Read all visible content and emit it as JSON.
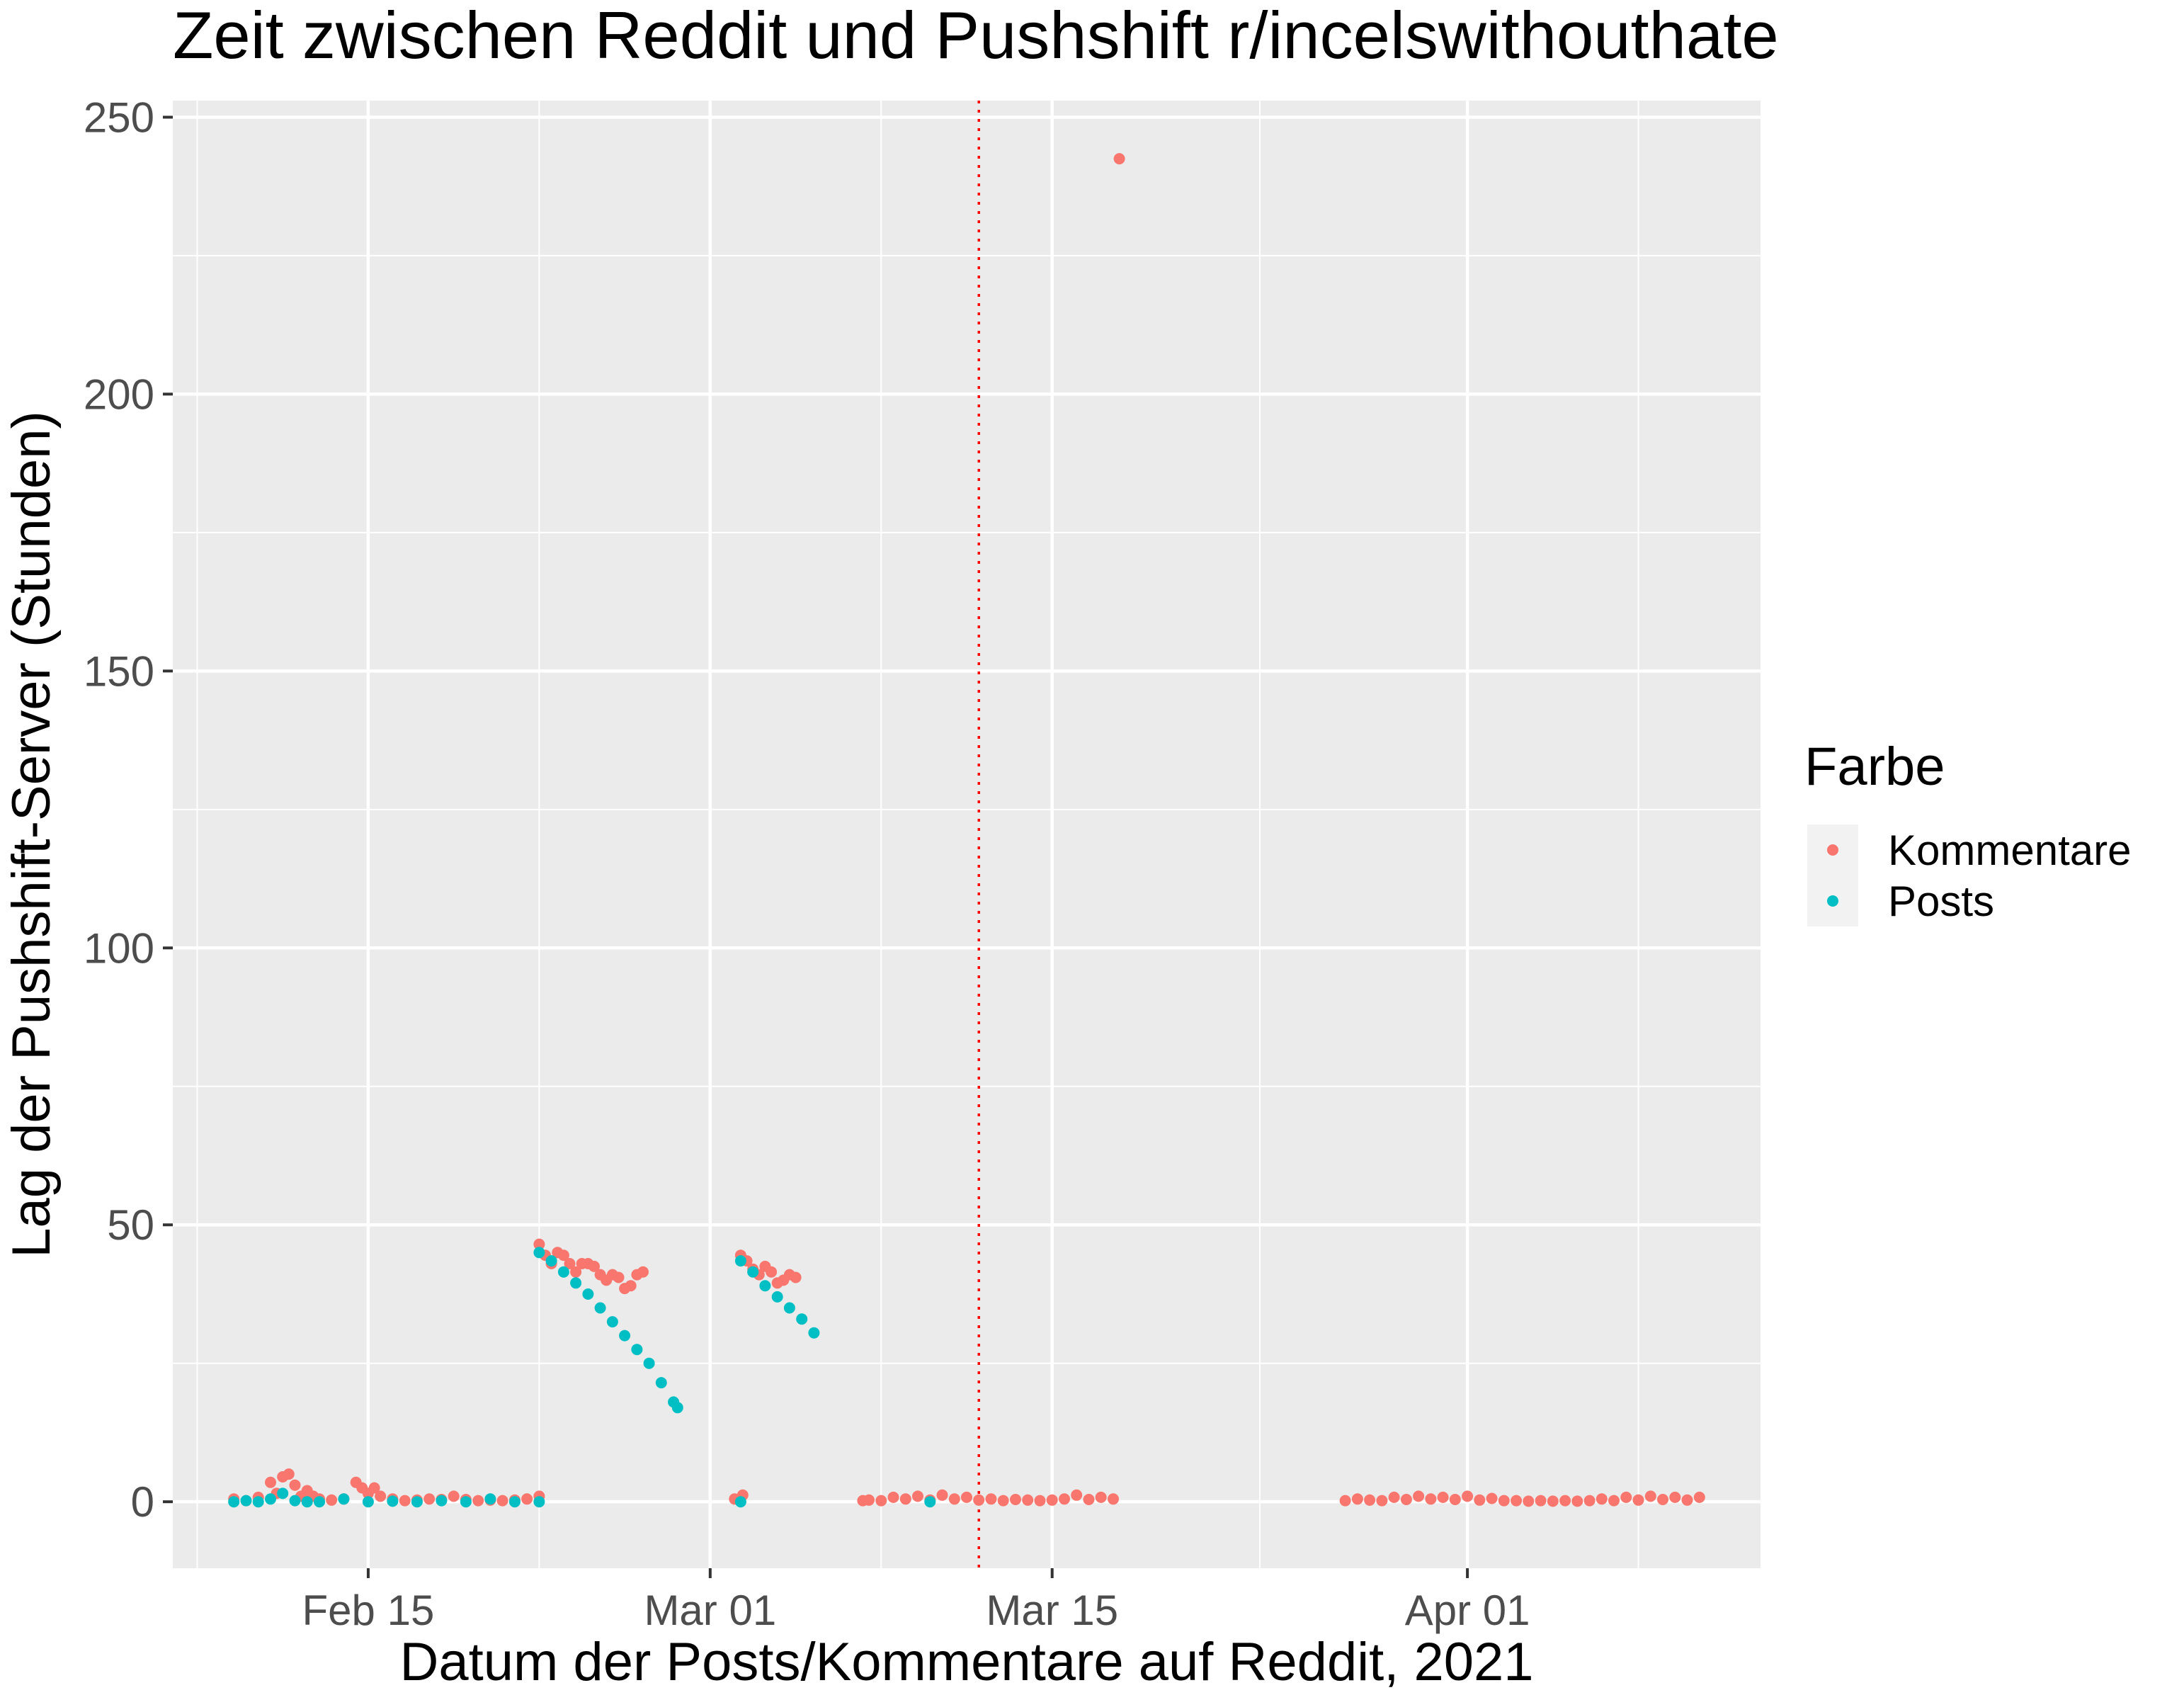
{
  "chart_data": {
    "type": "scatter",
    "title": "Zeit zwischen Reddit und Pushshift r/incelswithouthate",
    "xlabel": "Datum der Posts/Kommentare auf Reddit, 2021",
    "ylabel": "Lag der Pushshift-Server (Stunden)",
    "x_tick_labels": [
      "Feb 15",
      "Mar 01",
      "Mar 15",
      "Apr 01"
    ],
    "x_tick_dates": [
      "2021-02-15",
      "2021-03-01",
      "2021-03-15",
      "2021-04-01"
    ],
    "xlim": [
      "2021-02-07",
      "2021-04-13"
    ],
    "y_ticks": [
      0,
      50,
      100,
      150,
      200,
      250
    ],
    "ylim": [
      -12,
      253
    ],
    "grid": true,
    "vline": {
      "x": "2021-03-12",
      "color": "#ff0000",
      "style": "dotted"
    },
    "legend": {
      "title": "Farbe",
      "position": "right",
      "entries": [
        {
          "label": "Kommentare",
          "color": "#F8766D"
        },
        {
          "label": "Posts",
          "color": "#00BFC4"
        }
      ]
    },
    "series": [
      {
        "name": "Kommentare",
        "color": "#F8766D",
        "points": [
          [
            "2021-02-09T12:00",
            0.5
          ],
          [
            "2021-02-10T00:00",
            0.2
          ],
          [
            "2021-02-10T12:00",
            0.8
          ],
          [
            "2021-02-11T00:00",
            3.5
          ],
          [
            "2021-02-11T06:00",
            1.5
          ],
          [
            "2021-02-11T12:00",
            4.5
          ],
          [
            "2021-02-11T18:00",
            5
          ],
          [
            "2021-02-12T00:00",
            3
          ],
          [
            "2021-02-12T06:00",
            1
          ],
          [
            "2021-02-12T12:00",
            2
          ],
          [
            "2021-02-12T18:00",
            1
          ],
          [
            "2021-02-13T00:00",
            0.5
          ],
          [
            "2021-02-13T12:00",
            0.3
          ],
          [
            "2021-02-14T00:00",
            0.5
          ],
          [
            "2021-02-14T12:00",
            3.5
          ],
          [
            "2021-02-14T18:00",
            2.5
          ],
          [
            "2021-02-15T00:00",
            1.5
          ],
          [
            "2021-02-15T06:00",
            2.5
          ],
          [
            "2021-02-15T12:00",
            1
          ],
          [
            "2021-02-16T00:00",
            0.5
          ],
          [
            "2021-02-16T12:00",
            0.2
          ],
          [
            "2021-02-17T00:00",
            0.3
          ],
          [
            "2021-02-17T12:00",
            0.5
          ],
          [
            "2021-02-18T00:00",
            0.4
          ],
          [
            "2021-02-18T12:00",
            1
          ],
          [
            "2021-02-19T00:00",
            0.4
          ],
          [
            "2021-02-19T12:00",
            0.2
          ],
          [
            "2021-02-20T00:00",
            0.3
          ],
          [
            "2021-02-20T12:00",
            0.2
          ],
          [
            "2021-02-21T00:00",
            0.3
          ],
          [
            "2021-02-21T12:00",
            0.5
          ],
          [
            "2021-02-22T00:00",
            1
          ],
          [
            "2021-02-22T00:00",
            46.5
          ],
          [
            "2021-02-22T06:00",
            44.5
          ],
          [
            "2021-02-22T12:00",
            43
          ],
          [
            "2021-02-22T18:00",
            45
          ],
          [
            "2021-02-23T00:00",
            44.5
          ],
          [
            "2021-02-23T06:00",
            43
          ],
          [
            "2021-02-23T12:00",
            41.5
          ],
          [
            "2021-02-23T18:00",
            43
          ],
          [
            "2021-02-24T00:00",
            43
          ],
          [
            "2021-02-24T06:00",
            42.5
          ],
          [
            "2021-02-24T12:00",
            41
          ],
          [
            "2021-02-24T18:00",
            40
          ],
          [
            "2021-02-25T00:00",
            41
          ],
          [
            "2021-02-25T06:00",
            40.5
          ],
          [
            "2021-02-25T12:00",
            38.5
          ],
          [
            "2021-02-25T18:00",
            39
          ],
          [
            "2021-02-26T00:00",
            41
          ],
          [
            "2021-02-26T06:00",
            41.5
          ],
          [
            "2021-03-02T00:00",
            0.5
          ],
          [
            "2021-03-02T08:00",
            1.2
          ],
          [
            "2021-03-02T06:00",
            44.5
          ],
          [
            "2021-03-02T12:00",
            43.5
          ],
          [
            "2021-03-02T18:00",
            42
          ],
          [
            "2021-03-03T00:00",
            41
          ],
          [
            "2021-03-03T06:00",
            42.5
          ],
          [
            "2021-03-03T12:00",
            41.5
          ],
          [
            "2021-03-03T18:00",
            39.5
          ],
          [
            "2021-03-04T00:00",
            40
          ],
          [
            "2021-03-04T06:00",
            41
          ],
          [
            "2021-03-04T12:00",
            40.5
          ],
          [
            "2021-03-07T06:00",
            0.2
          ],
          [
            "2021-03-07T12:00",
            0.3
          ],
          [
            "2021-03-08T00:00",
            0.2
          ],
          [
            "2021-03-08T12:00",
            0.8
          ],
          [
            "2021-03-09T00:00",
            0.5
          ],
          [
            "2021-03-09T12:00",
            1
          ],
          [
            "2021-03-10T00:00",
            0.3
          ],
          [
            "2021-03-10T12:00",
            1.2
          ],
          [
            "2021-03-11T00:00",
            0.5
          ],
          [
            "2021-03-11T12:00",
            0.8
          ],
          [
            "2021-03-12T00:00",
            0.3
          ],
          [
            "2021-03-12T12:00",
            0.5
          ],
          [
            "2021-03-13T00:00",
            0.2
          ],
          [
            "2021-03-13T12:00",
            0.4
          ],
          [
            "2021-03-14T00:00",
            0.3
          ],
          [
            "2021-03-14T12:00",
            0.2
          ],
          [
            "2021-03-15T00:00",
            0.3
          ],
          [
            "2021-03-15T12:00",
            0.5
          ],
          [
            "2021-03-16T00:00",
            1.2
          ],
          [
            "2021-03-16T12:00",
            0.4
          ],
          [
            "2021-03-17T00:00",
            0.8
          ],
          [
            "2021-03-17T12:00",
            0.5
          ],
          [
            "2021-03-17T18:00",
            242.5
          ],
          [
            "2021-03-27T00:00",
            0.2
          ],
          [
            "2021-03-27T12:00",
            0.5
          ],
          [
            "2021-03-28T00:00",
            0.3
          ],
          [
            "2021-03-28T12:00",
            0.2
          ],
          [
            "2021-03-29T00:00",
            0.8
          ],
          [
            "2021-03-29T12:00",
            0.4
          ],
          [
            "2021-03-30T00:00",
            1
          ],
          [
            "2021-03-30T12:00",
            0.5
          ],
          [
            "2021-03-31T00:00",
            0.8
          ],
          [
            "2021-03-31T12:00",
            0.4
          ],
          [
            "2021-04-01T00:00",
            1
          ],
          [
            "2021-04-01T12:00",
            0.3
          ],
          [
            "2021-04-02T00:00",
            0.6
          ],
          [
            "2021-04-02T12:00",
            0.2
          ],
          [
            "2021-04-03T00:00",
            0.2
          ],
          [
            "2021-04-03T12:00",
            0.1
          ],
          [
            "2021-04-04T00:00",
            0.2
          ],
          [
            "2021-04-04T12:00",
            0.1
          ],
          [
            "2021-04-05T00:00",
            0.2
          ],
          [
            "2021-04-05T12:00",
            0.1
          ],
          [
            "2021-04-06T00:00",
            0.2
          ],
          [
            "2021-04-06T12:00",
            0.5
          ],
          [
            "2021-04-07T00:00",
            0.2
          ],
          [
            "2021-04-07T12:00",
            0.8
          ],
          [
            "2021-04-08T00:00",
            0.3
          ],
          [
            "2021-04-08T12:00",
            1
          ],
          [
            "2021-04-09T00:00",
            0.4
          ],
          [
            "2021-04-09T12:00",
            0.8
          ],
          [
            "2021-04-10T00:00",
            0.3
          ],
          [
            "2021-04-10T12:00",
            0.8
          ]
        ]
      },
      {
        "name": "Posts",
        "color": "#00BFC4",
        "points": [
          [
            "2021-02-09T12:00",
            0
          ],
          [
            "2021-02-10T00:00",
            0.2
          ],
          [
            "2021-02-10T12:00",
            0
          ],
          [
            "2021-02-11T00:00",
            0.5
          ],
          [
            "2021-02-11T12:00",
            1.5
          ],
          [
            "2021-02-12T00:00",
            0.2
          ],
          [
            "2021-02-12T12:00",
            0
          ],
          [
            "2021-02-13T00:00",
            0
          ],
          [
            "2021-02-14T00:00",
            0.5
          ],
          [
            "2021-02-15T00:00",
            0
          ],
          [
            "2021-02-16T00:00",
            0.1
          ],
          [
            "2021-02-17T00:00",
            0
          ],
          [
            "2021-02-18T00:00",
            0.2
          ],
          [
            "2021-02-19T00:00",
            0
          ],
          [
            "2021-02-20T00:00",
            0.5
          ],
          [
            "2021-02-21T00:00",
            0
          ],
          [
            "2021-02-22T00:00",
            0
          ],
          [
            "2021-02-22T00:00",
            45
          ],
          [
            "2021-02-22T12:00",
            43.5
          ],
          [
            "2021-02-23T00:00",
            41.5
          ],
          [
            "2021-02-23T12:00",
            39.5
          ],
          [
            "2021-02-24T00:00",
            37.5
          ],
          [
            "2021-02-24T12:00",
            35
          ],
          [
            "2021-02-25T00:00",
            32.5
          ],
          [
            "2021-02-25T12:00",
            30
          ],
          [
            "2021-02-26T00:00",
            27.5
          ],
          [
            "2021-02-26T12:00",
            25
          ],
          [
            "2021-02-27T00:00",
            21.5
          ],
          [
            "2021-02-27T12:00",
            18
          ],
          [
            "2021-02-27T16:00",
            17
          ],
          [
            "2021-03-02T06:00",
            0
          ],
          [
            "2021-03-02T06:00",
            43.5
          ],
          [
            "2021-03-02T18:00",
            41.5
          ],
          [
            "2021-03-03T06:00",
            39
          ],
          [
            "2021-03-03T18:00",
            37
          ],
          [
            "2021-03-04T06:00",
            35
          ],
          [
            "2021-03-04T18:00",
            33
          ],
          [
            "2021-03-05T06:00",
            30.5
          ],
          [
            "2021-03-10T00:00",
            0
          ]
        ]
      }
    ]
  }
}
